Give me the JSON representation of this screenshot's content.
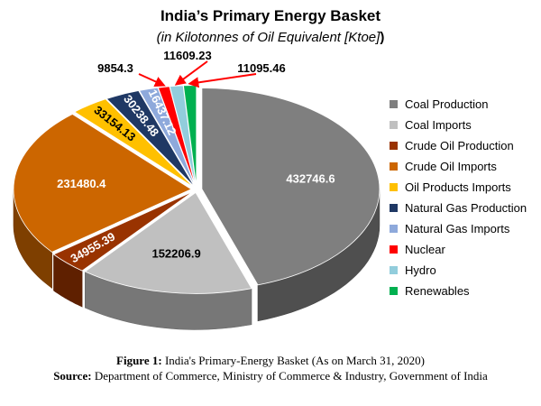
{
  "title": "India’s Primary Energy Basket",
  "subtitle": "(in Kilotonnes of Oil Equivalent [Ktoe]",
  "subtitle_close": ")",
  "caption": {
    "figure_label": "Figure 1:",
    "figure_text": " India's Primary-Energy Basket (As on March 31, 2020)",
    "source_label": "Source:",
    "source_text": " Department of Commerce, Ministry of Commerce & Industry, Government of India"
  },
  "chart_data": {
    "type": "pie",
    "title": "India’s Primary Energy Basket",
    "subtitle": "(in Kilotonnes of Oil Equivalent [Ktoe])",
    "legend_position": "right",
    "style": "3d-exploded-top",
    "categories": [
      "Coal Production",
      "Coal Imports",
      "Crude Oil Production",
      "Crude Oil Imports",
      "Oil Products Imports",
      "Natural Gas Production",
      "Natural Gas Imports",
      "Nuclear",
      "Hydro",
      "Renewables"
    ],
    "values": [
      432746.6,
      152206.9,
      34955.39,
      231480.4,
      33154.13,
      30238.48,
      16437.12,
      9854.3,
      11609.23,
      11095.46
    ],
    "labels": [
      "432746.6",
      "152206.9",
      "34955.39",
      "231480.4",
      "33154.13",
      "30238.48",
      "16437.12",
      "9854.3",
      "11609.23",
      "11095.46"
    ],
    "colors": [
      "#7f7f7f",
      "#c0c0c0",
      "#993300",
      "#cc6600",
      "#ffc000",
      "#1f3864",
      "#8ea9db",
      "#ff0000",
      "#92cddc",
      "#00b050"
    ],
    "label_colors": [
      "#ffffff",
      "#000000",
      "#ffffff",
      "#ffffff",
      "#000000",
      "#ffffff",
      "#ffffff",
      "#000000",
      "#000000",
      "#000000"
    ]
  }
}
